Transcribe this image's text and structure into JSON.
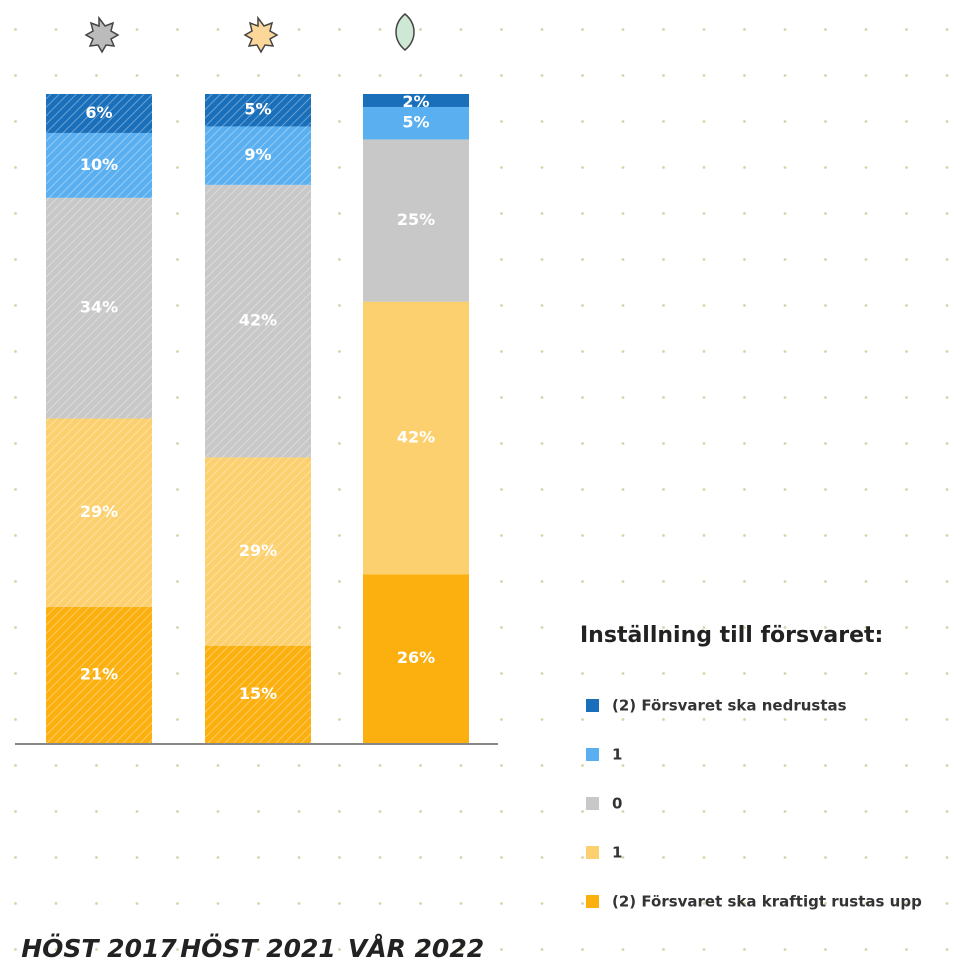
{
  "chart_data": {
    "type": "stacked_bar",
    "legend_title": "Inställning till försvaret:",
    "categories": [
      "HÖST 2017",
      "HÖST 2021",
      "VÅR 2022"
    ],
    "series": [
      {
        "name": "(2) Försvaret ska kraftigt rustas upp",
        "color": "#fbb00f",
        "values": [
          21,
          15,
          26
        ],
        "value_labels": [
          "21%",
          "15%",
          "26%"
        ]
      },
      {
        "name": "1",
        "color": "#fcd06e",
        "values": [
          29,
          29,
          42
        ],
        "value_labels": [
          "29%",
          "29%",
          "42%"
        ]
      },
      {
        "name": "0",
        "color": "#c8c8c8",
        "values": [
          34,
          42,
          25
        ],
        "value_labels": [
          "34%",
          "42%",
          "25%"
        ]
      },
      {
        "name": "1",
        "color": "#5aaff0",
        "values": [
          10,
          9,
          5
        ],
        "value_labels": [
          "10%",
          "9%",
          "5%"
        ]
      },
      {
        "name": "(2) Försvaret ska nedrustas",
        "color": "#1a6fba",
        "values": [
          6,
          5,
          2
        ],
        "value_labels": [
          "6%",
          "5%",
          "2%"
        ]
      }
    ]
  }
}
